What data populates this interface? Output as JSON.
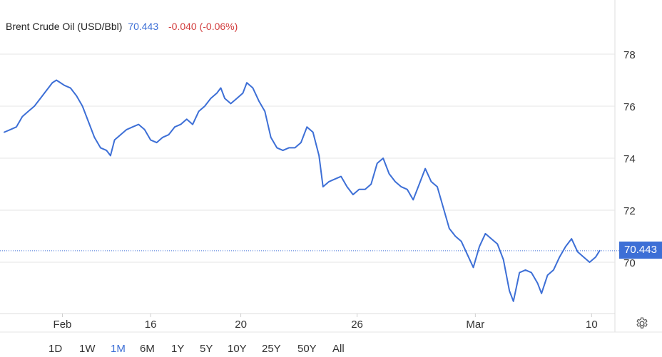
{
  "header": {
    "name": "Brent Crude Oil (USD/Bbl)",
    "last": "70.443",
    "change": "-0.040 (-0.06%)"
  },
  "price_tag": "70.443",
  "ranges": [
    {
      "label": "1D",
      "active": false
    },
    {
      "label": "1W",
      "active": false
    },
    {
      "label": "1M",
      "active": true
    },
    {
      "label": "6M",
      "active": false
    },
    {
      "label": "1Y",
      "active": false
    },
    {
      "label": "5Y",
      "active": false
    },
    {
      "label": "10Y",
      "active": false
    },
    {
      "label": "25Y",
      "active": false
    },
    {
      "label": "50Y",
      "active": false
    },
    {
      "label": "All",
      "active": false
    }
  ],
  "colors": {
    "line": "#3d6fd6",
    "grid": "#e6e6e6",
    "negative": "#d23c3c"
  },
  "chart_data": {
    "type": "line",
    "title": "Brent Crude Oil (USD/Bbl)",
    "xlabel": "",
    "ylabel": "",
    "ylim": [
      68,
      80
    ],
    "yticks": [
      70,
      72,
      74,
      76,
      78
    ],
    "xticks": [
      {
        "label": "Feb",
        "x": "Feb 1"
      },
      {
        "label": "16",
        "x": "Feb 16"
      },
      {
        "label": "20",
        "x": "Feb 20"
      },
      {
        "label": "26",
        "x": "Feb 26"
      },
      {
        "label": "Mar",
        "x": "Mar 3"
      },
      {
        "label": "10",
        "x": "Mar 10"
      }
    ],
    "current_value": 70.443,
    "grid": true,
    "series": [
      {
        "values": [
          [
            0,
            75.0
          ],
          [
            0.3,
            75.1
          ],
          [
            0.6,
            75.2
          ],
          [
            0.9,
            75.6
          ],
          [
            1.2,
            75.8
          ],
          [
            1.5,
            76.0
          ],
          [
            1.8,
            76.3
          ],
          [
            2.1,
            76.6
          ],
          [
            2.4,
            76.9
          ],
          [
            2.6,
            77.0
          ],
          [
            2.8,
            76.9
          ],
          [
            3.0,
            76.8
          ],
          [
            3.3,
            76.7
          ],
          [
            3.6,
            76.4
          ],
          [
            3.9,
            76.0
          ],
          [
            4.2,
            75.4
          ],
          [
            4.5,
            74.8
          ],
          [
            4.8,
            74.4
          ],
          [
            5.1,
            74.3
          ],
          [
            5.3,
            74.1
          ],
          [
            5.5,
            74.7
          ],
          [
            5.8,
            74.9
          ],
          [
            6.1,
            75.1
          ],
          [
            6.4,
            75.2
          ],
          [
            6.7,
            75.3
          ],
          [
            7.0,
            75.1
          ],
          [
            7.3,
            74.7
          ],
          [
            7.6,
            74.6
          ],
          [
            7.9,
            74.8
          ],
          [
            8.2,
            74.9
          ],
          [
            8.5,
            75.2
          ],
          [
            8.8,
            75.3
          ],
          [
            9.1,
            75.5
          ],
          [
            9.4,
            75.3
          ],
          [
            9.7,
            75.8
          ],
          [
            10.0,
            76.0
          ],
          [
            10.3,
            76.3
          ],
          [
            10.6,
            76.5
          ],
          [
            10.8,
            76.7
          ],
          [
            11.0,
            76.3
          ],
          [
            11.3,
            76.1
          ],
          [
            11.6,
            76.3
          ],
          [
            11.9,
            76.5
          ],
          [
            12.1,
            76.9
          ],
          [
            12.4,
            76.7
          ],
          [
            12.7,
            76.2
          ],
          [
            13.0,
            75.8
          ],
          [
            13.3,
            74.8
          ],
          [
            13.6,
            74.4
          ],
          [
            13.9,
            74.3
          ],
          [
            14.2,
            74.4
          ],
          [
            14.5,
            74.4
          ],
          [
            14.8,
            74.6
          ],
          [
            15.1,
            75.2
          ],
          [
            15.4,
            75.0
          ],
          [
            15.7,
            74.1
          ],
          [
            15.9,
            72.9
          ],
          [
            16.2,
            73.1
          ],
          [
            16.5,
            73.2
          ],
          [
            16.8,
            73.3
          ],
          [
            17.1,
            72.9
          ],
          [
            17.4,
            72.6
          ],
          [
            17.7,
            72.8
          ],
          [
            18.0,
            72.8
          ],
          [
            18.3,
            73.0
          ],
          [
            18.6,
            73.8
          ],
          [
            18.9,
            74.0
          ],
          [
            19.2,
            73.4
          ],
          [
            19.5,
            73.1
          ],
          [
            19.8,
            72.9
          ],
          [
            20.1,
            72.8
          ],
          [
            20.4,
            72.4
          ],
          [
            20.7,
            73.0
          ],
          [
            21.0,
            73.6
          ],
          [
            21.3,
            73.1
          ],
          [
            21.6,
            72.9
          ],
          [
            21.9,
            72.1
          ],
          [
            22.2,
            71.3
          ],
          [
            22.5,
            71.0
          ],
          [
            22.8,
            70.8
          ],
          [
            23.1,
            70.3
          ],
          [
            23.4,
            69.8
          ],
          [
            23.7,
            70.6
          ],
          [
            24.0,
            71.1
          ],
          [
            24.3,
            70.9
          ],
          [
            24.6,
            70.7
          ],
          [
            24.9,
            70.1
          ],
          [
            25.2,
            68.9
          ],
          [
            25.4,
            68.5
          ],
          [
            25.7,
            69.6
          ],
          [
            26.0,
            69.7
          ],
          [
            26.3,
            69.6
          ],
          [
            26.6,
            69.2
          ],
          [
            26.8,
            68.8
          ],
          [
            27.1,
            69.5
          ],
          [
            27.4,
            69.7
          ],
          [
            27.7,
            70.2
          ],
          [
            28.0,
            70.6
          ],
          [
            28.3,
            70.9
          ],
          [
            28.6,
            70.4
          ],
          [
            28.9,
            70.2
          ],
          [
            29.2,
            70.0
          ],
          [
            29.5,
            70.2
          ],
          [
            29.7,
            70.443
          ]
        ]
      }
    ]
  }
}
